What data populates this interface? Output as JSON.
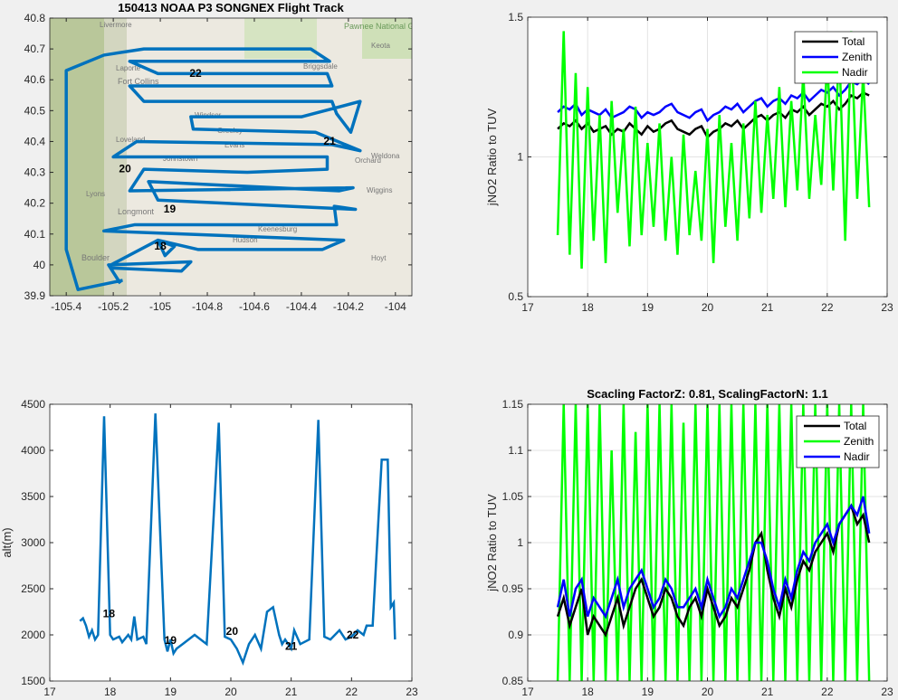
{
  "chart_data": [
    {
      "id": "map",
      "type": "line",
      "title": "150413 NOAA P3 SONGNEX Flight Track",
      "xlabel": "",
      "ylabel": "",
      "xlim": [
        -105.47,
        -103.93
      ],
      "ylim": [
        39.9,
        40.8
      ],
      "xticks": [
        -105.4,
        -105.2,
        -105,
        -104.8,
        -104.6,
        -104.4,
        -104.2,
        -104
      ],
      "yticks": [
        39.9,
        40,
        40.1,
        40.2,
        40.3,
        40.4,
        40.5,
        40.6,
        40.7,
        40.8
      ],
      "grid": false,
      "color": "#0072bd",
      "track": [
        [
          -105.17,
          39.94
        ],
        [
          -105.22,
          40.0
        ],
        [
          -104.87,
          40.01
        ],
        [
          -104.91,
          39.98
        ],
        [
          -105.21,
          39.99
        ],
        [
          -105.21,
          40.0
        ],
        [
          -105.01,
          40.08
        ],
        [
          -104.98,
          40.03
        ],
        [
          -104.94,
          40.06
        ],
        [
          -105.01,
          40.08
        ],
        [
          -104.84,
          40.05
        ],
        [
          -104.31,
          40.05
        ],
        [
          -104.22,
          40.08
        ],
        [
          -105.24,
          40.11
        ],
        [
          -105.11,
          40.13
        ],
        [
          -104.25,
          40.13
        ],
        [
          -104.26,
          40.19
        ],
        [
          -104.17,
          40.18
        ],
        [
          -105.01,
          40.21
        ],
        [
          -105.05,
          40.27
        ],
        [
          -104.24,
          40.24
        ],
        [
          -104.18,
          40.25
        ],
        [
          -105.13,
          40.24
        ],
        [
          -105.07,
          40.31
        ],
        [
          -104.63,
          40.3
        ],
        [
          -104.29,
          40.31
        ],
        [
          -104.29,
          40.35
        ],
        [
          -105.2,
          40.35
        ],
        [
          -105.1,
          40.4
        ],
        [
          -104.27,
          40.39
        ],
        [
          -104.15,
          40.37
        ],
        [
          -104.34,
          40.43
        ],
        [
          -104.86,
          40.44
        ],
        [
          -104.87,
          40.48
        ],
        [
          -104.4,
          40.48
        ],
        [
          -104.15,
          40.53
        ],
        [
          -104.19,
          40.43
        ],
        [
          -104.25,
          40.49
        ],
        [
          -104.27,
          40.53
        ],
        [
          -105.07,
          40.53
        ],
        [
          -105.13,
          40.58
        ],
        [
          -104.27,
          40.58
        ],
        [
          -104.29,
          40.62
        ],
        [
          -105.01,
          40.62
        ],
        [
          -105.13,
          40.66
        ],
        [
          -104.28,
          40.66
        ],
        [
          -104.36,
          40.7
        ],
        [
          -105.07,
          40.7
        ],
        [
          -105.24,
          40.68
        ],
        [
          -105.4,
          40.63
        ],
        [
          -105.4,
          40.05
        ],
        [
          -105.35,
          39.92
        ],
        [
          -105.16,
          39.95
        ]
      ],
      "annotations": [
        {
          "text": "22",
          "x": -104.85,
          "y": 40.61
        },
        {
          "text": "21",
          "x": -104.28,
          "y": 40.39
        },
        {
          "text": "20",
          "x": -105.15,
          "y": 40.3
        },
        {
          "text": "19",
          "x": -104.96,
          "y": 40.17
        },
        {
          "text": "18",
          "x": -105.0,
          "y": 40.05
        }
      ],
      "map_labels": [
        "Livermore",
        "Pawnee National Grassland",
        "Keota",
        "Laporte",
        "Fort Collins",
        "Briggsdale",
        "Windsor",
        "Greeley",
        "Loveland",
        "Evans",
        "Johnstown",
        "Orchard",
        "Weldona",
        "Lyons",
        "Wiggins",
        "Longmont",
        "Keenesburg",
        "Hudson",
        "Boulder",
        "Hoyt"
      ]
    },
    {
      "id": "ratio",
      "type": "line",
      "title": "",
      "xlabel": "",
      "ylabel": "jNO2 Ratio to TUV",
      "xlim": [
        17,
        23
      ],
      "ylim": [
        0.5,
        1.5
      ],
      "xticks": [
        17,
        18,
        19,
        20,
        21,
        22,
        23
      ],
      "yticks": [
        0.5,
        1,
        1.5
      ],
      "grid": true,
      "legend": "top-right",
      "x_start": 17.5,
      "x_step": 0.1,
      "series": [
        {
          "name": "Total",
          "color": "#000000",
          "values": [
            1.1,
            1.12,
            1.11,
            1.13,
            1.1,
            1.12,
            1.09,
            1.1,
            1.11,
            1.08,
            1.1,
            1.09,
            1.12,
            1.1,
            1.08,
            1.11,
            1.09,
            1.1,
            1.12,
            1.13,
            1.1,
            1.09,
            1.08,
            1.1,
            1.11,
            1.07,
            1.09,
            1.1,
            1.12,
            1.11,
            1.13,
            1.1,
            1.12,
            1.14,
            1.15,
            1.13,
            1.15,
            1.16,
            1.14,
            1.17,
            1.16,
            1.18,
            1.15,
            1.17,
            1.19,
            1.18,
            1.2,
            1.17,
            1.19,
            1.22,
            1.21,
            1.23,
            1.22
          ]
        },
        {
          "name": "Zenith",
          "color": "#0000ff",
          "values": [
            1.16,
            1.18,
            1.17,
            1.19,
            1.15,
            1.17,
            1.16,
            1.15,
            1.17,
            1.14,
            1.15,
            1.16,
            1.18,
            1.17,
            1.14,
            1.16,
            1.15,
            1.16,
            1.18,
            1.19,
            1.16,
            1.15,
            1.14,
            1.16,
            1.17,
            1.13,
            1.15,
            1.16,
            1.18,
            1.17,
            1.19,
            1.16,
            1.18,
            1.2,
            1.21,
            1.18,
            1.2,
            1.21,
            1.19,
            1.22,
            1.21,
            1.23,
            1.2,
            1.22,
            1.24,
            1.23,
            1.25,
            1.22,
            1.24,
            1.27,
            1.26,
            1.28,
            1.26
          ]
        },
        {
          "name": "Nadir",
          "color": "#00ff00",
          "values": [
            0.72,
            1.45,
            0.65,
            1.3,
            0.6,
            1.25,
            0.7,
            1.15,
            0.62,
            1.2,
            0.8,
            1.1,
            0.68,
            1.18,
            0.72,
            1.05,
            0.75,
            1.12,
            0.7,
            1.0,
            0.65,
            1.08,
            0.72,
            0.95,
            0.7,
            1.1,
            0.62,
            1.15,
            0.75,
            1.05,
            0.7,
            1.12,
            0.78,
            1.2,
            0.8,
            1.15,
            0.85,
            1.25,
            0.82,
            1.2,
            0.88,
            1.3,
            0.85,
            1.15,
            0.9,
            1.35,
            0.88,
            1.4,
            0.7,
            1.45,
            0.85,
            1.3,
            0.82
          ]
        }
      ]
    },
    {
      "id": "alt",
      "type": "line",
      "title": "",
      "xlabel": "",
      "ylabel": "alt(m)",
      "xlim": [
        17,
        23
      ],
      "ylim": [
        1500,
        4500
      ],
      "xticks": [
        17,
        18,
        19,
        20,
        21,
        22,
        23
      ],
      "yticks": [
        1500,
        2000,
        2500,
        3000,
        3500,
        4000,
        4500
      ],
      "grid": false,
      "color": "#0072bd",
      "points": [
        [
          17.5,
          2150
        ],
        [
          17.55,
          2180
        ],
        [
          17.6,
          2100
        ],
        [
          17.65,
          1980
        ],
        [
          17.7,
          2050
        ],
        [
          17.75,
          1950
        ],
        [
          17.8,
          2000
        ],
        [
          17.9,
          4370
        ],
        [
          18.0,
          2000
        ],
        [
          18.05,
          1950
        ],
        [
          18.15,
          1980
        ],
        [
          18.2,
          1920
        ],
        [
          18.3,
          2000
        ],
        [
          18.35,
          1950
        ],
        [
          18.4,
          2200
        ],
        [
          18.45,
          1950
        ],
        [
          18.55,
          1980
        ],
        [
          18.6,
          1900
        ],
        [
          18.75,
          4400
        ],
        [
          18.9,
          1950
        ],
        [
          18.95,
          1820
        ],
        [
          19.0,
          1950
        ],
        [
          19.05,
          1800
        ],
        [
          19.1,
          1850
        ],
        [
          19.2,
          1900
        ],
        [
          19.3,
          1950
        ],
        [
          19.4,
          2000
        ],
        [
          19.5,
          1950
        ],
        [
          19.6,
          1900
        ],
        [
          19.8,
          4300
        ],
        [
          19.9,
          1980
        ],
        [
          20.0,
          1950
        ],
        [
          20.1,
          1850
        ],
        [
          20.2,
          1700
        ],
        [
          20.3,
          1900
        ],
        [
          20.4,
          2000
        ],
        [
          20.5,
          1850
        ],
        [
          20.6,
          2250
        ],
        [
          20.7,
          2300
        ],
        [
          20.8,
          2000
        ],
        [
          20.85,
          1900
        ],
        [
          20.9,
          1950
        ],
        [
          21.0,
          1850
        ],
        [
          21.05,
          2050
        ],
        [
          21.15,
          1900
        ],
        [
          21.3,
          1950
        ],
        [
          21.45,
          4330
        ],
        [
          21.55,
          1980
        ],
        [
          21.65,
          1950
        ],
        [
          21.8,
          2050
        ],
        [
          21.9,
          1950
        ],
        [
          22.0,
          1980
        ],
        [
          22.1,
          2050
        ],
        [
          22.2,
          2000
        ],
        [
          22.25,
          2100
        ],
        [
          22.35,
          2100
        ],
        [
          22.5,
          3900
        ],
        [
          22.6,
          3900
        ],
        [
          22.65,
          2300
        ],
        [
          22.7,
          2350
        ],
        [
          22.72,
          1950
        ]
      ],
      "annotations": [
        {
          "text": "18",
          "x": 17.98,
          "y": 2190
        },
        {
          "text": "19",
          "x": 19.0,
          "y": 1900
        },
        {
          "text": "20",
          "x": 20.02,
          "y": 2000
        },
        {
          "text": "21",
          "x": 21.0,
          "y": 1840
        },
        {
          "text": "22",
          "x": 22.02,
          "y": 1960
        }
      ]
    },
    {
      "id": "scaled",
      "type": "line",
      "title": "Scacling FactorZ: 0.81, ScalingFactorN: 1.1",
      "xlabel": "",
      "ylabel": "jNO2 Ratio to TUV",
      "xlim": [
        17,
        23
      ],
      "ylim": [
        0.85,
        1.15
      ],
      "xticks": [
        17,
        18,
        19,
        20,
        21,
        22,
        23
      ],
      "yticks": [
        0.85,
        0.9,
        0.95,
        1,
        1.05,
        1.1,
        1.15
      ],
      "grid": true,
      "legend": "top-right",
      "x_start": 17.5,
      "x_step": 0.1,
      "series": [
        {
          "name": "Zenith",
          "color": "#00ff00",
          "values": [
            0.8,
            1.2,
            0.82,
            1.2,
            0.8,
            1.18,
            0.83,
            1.2,
            0.8,
            1.1,
            0.84,
            1.2,
            0.8,
            1.12,
            0.83,
            1.2,
            0.8,
            1.16,
            0.82,
            1.2,
            0.8,
            1.13,
            0.84,
            1.2,
            0.8,
            1.18,
            0.82,
            1.2,
            0.8,
            1.15,
            0.83,
            1.2,
            0.8,
            1.2,
            0.84,
            1.2,
            0.8,
            1.18,
            0.82,
            1.2,
            0.8,
            1.2,
            0.84,
            1.2,
            0.8,
            1.2,
            0.82,
            1.2,
            0.8,
            1.2,
            0.84,
            1.2,
            0.8
          ]
        },
        {
          "name": "Total",
          "color": "#000000",
          "values": [
            0.92,
            0.94,
            0.91,
            0.93,
            0.95,
            0.9,
            0.92,
            0.91,
            0.9,
            0.92,
            0.94,
            0.91,
            0.93,
            0.95,
            0.96,
            0.94,
            0.92,
            0.93,
            0.95,
            0.94,
            0.92,
            0.91,
            0.93,
            0.94,
            0.92,
            0.95,
            0.93,
            0.91,
            0.92,
            0.94,
            0.93,
            0.95,
            0.97,
            1.0,
            1.01,
            0.97,
            0.94,
            0.92,
            0.95,
            0.93,
            0.96,
            0.98,
            0.97,
            0.99,
            1.0,
            1.01,
            0.99,
            1.02,
            1.03,
            1.04,
            1.02,
            1.03,
            1.0
          ]
        },
        {
          "name": "Nadir",
          "color": "#0000ff",
          "values": [
            0.93,
            0.96,
            0.92,
            0.95,
            0.96,
            0.92,
            0.94,
            0.93,
            0.92,
            0.94,
            0.96,
            0.93,
            0.95,
            0.96,
            0.97,
            0.95,
            0.93,
            0.94,
            0.96,
            0.95,
            0.93,
            0.93,
            0.94,
            0.95,
            0.93,
            0.96,
            0.94,
            0.92,
            0.93,
            0.95,
            0.94,
            0.96,
            0.98,
            1.0,
            1.0,
            0.98,
            0.95,
            0.93,
            0.96,
            0.94,
            0.97,
            0.99,
            0.98,
            1.0,
            1.01,
            1.02,
            1.0,
            1.02,
            1.03,
            1.04,
            1.03,
            1.05,
            1.01
          ]
        }
      ],
      "legend_order": [
        "Total",
        "Zenith",
        "Nadir"
      ]
    }
  ]
}
